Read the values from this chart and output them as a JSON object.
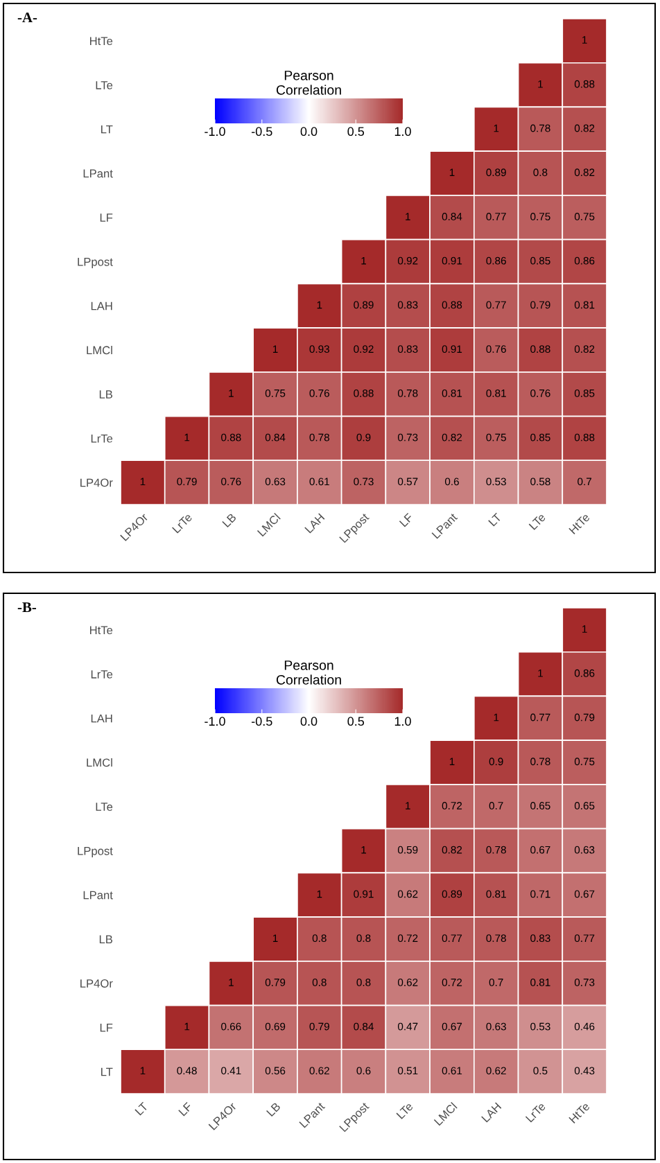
{
  "chart_data": [
    {
      "type": "heatmap",
      "annotations": [
        "-A-"
      ],
      "clabel": "Pearson Correlation",
      "clim": [
        -1,
        1
      ],
      "cticks": [
        {
          "value": -1,
          "label": "-1.0"
        },
        {
          "value": -0.5,
          "label": "-0.5"
        },
        {
          "value": 0,
          "label": "0.0"
        },
        {
          "value": 0.5,
          "label": "0.5"
        },
        {
          "value": 1,
          "label": "1.0"
        }
      ],
      "colors": [
        "#0000ff",
        "#ffffff",
        "#a52a2a"
      ],
      "data_labels": true,
      "grid": false,
      "categories": [
        "LP4Or",
        "LrTe",
        "LB",
        "LMCl",
        "LAH",
        "LPpost",
        "LF",
        "LPant",
        "LT",
        "LTe",
        "HtTe"
      ],
      "y_categories": [
        "HtTe",
        "LTe",
        "LT",
        "LPant",
        "LF",
        "LPpost",
        "LAH",
        "LMCl",
        "LB",
        "LrTe",
        "LP4Or"
      ],
      "cells": [
        [
          null,
          null,
          null,
          null,
          null,
          null,
          null,
          null,
          null,
          null,
          1
        ],
        [
          null,
          null,
          null,
          null,
          null,
          null,
          null,
          null,
          null,
          1,
          0.88
        ],
        [
          null,
          null,
          null,
          null,
          null,
          null,
          null,
          null,
          1,
          0.78,
          0.82
        ],
        [
          null,
          null,
          null,
          null,
          null,
          null,
          null,
          1,
          0.89,
          0.8,
          0.82
        ],
        [
          null,
          null,
          null,
          null,
          null,
          null,
          1,
          0.84,
          0.77,
          0.75,
          0.75
        ],
        [
          null,
          null,
          null,
          null,
          null,
          1,
          0.92,
          0.91,
          0.86,
          0.85,
          0.86
        ],
        [
          null,
          null,
          null,
          null,
          1,
          0.89,
          0.83,
          0.88,
          0.77,
          0.79,
          0.81
        ],
        [
          null,
          null,
          null,
          1,
          0.93,
          0.92,
          0.83,
          0.91,
          0.76,
          0.88,
          0.82
        ],
        [
          null,
          null,
          1,
          0.75,
          0.76,
          0.88,
          0.78,
          0.81,
          0.81,
          0.76,
          0.85
        ],
        [
          null,
          1,
          0.88,
          0.84,
          0.78,
          0.9,
          0.73,
          0.82,
          0.75,
          0.85,
          0.88
        ],
        [
          1,
          0.79,
          0.76,
          0.63,
          0.61,
          0.73,
          0.57,
          0.6,
          0.53,
          0.58,
          0.7
        ]
      ]
    },
    {
      "type": "heatmap",
      "annotations": [
        "-B-"
      ],
      "clabel": "Pearson Correlation",
      "clim": [
        -1,
        1
      ],
      "cticks": [
        {
          "value": -1,
          "label": "-1.0"
        },
        {
          "value": -0.5,
          "label": "-0.5"
        },
        {
          "value": 0,
          "label": "0.0"
        },
        {
          "value": 0.5,
          "label": "0.5"
        },
        {
          "value": 1,
          "label": "1.0"
        }
      ],
      "colors": [
        "#0000ff",
        "#ffffff",
        "#a52a2a"
      ],
      "data_labels": true,
      "grid": false,
      "categories": [
        "LT",
        "LF",
        "LP4Or",
        "LB",
        "LPant",
        "LPpost",
        "LTe",
        "LMCl",
        "LAH",
        "LrTe",
        "HtTe"
      ],
      "y_categories": [
        "HtTe",
        "LrTe",
        "LAH",
        "LMCl",
        "LTe",
        "LPpost",
        "LPant",
        "LB",
        "LP4Or",
        "LF",
        "LT"
      ],
      "cells": [
        [
          null,
          null,
          null,
          null,
          null,
          null,
          null,
          null,
          null,
          null,
          1
        ],
        [
          null,
          null,
          null,
          null,
          null,
          null,
          null,
          null,
          null,
          1,
          0.86
        ],
        [
          null,
          null,
          null,
          null,
          null,
          null,
          null,
          null,
          1,
          0.77,
          0.79
        ],
        [
          null,
          null,
          null,
          null,
          null,
          null,
          null,
          1,
          0.9,
          0.78,
          0.75
        ],
        [
          null,
          null,
          null,
          null,
          null,
          null,
          1,
          0.72,
          0.7,
          0.65,
          0.65
        ],
        [
          null,
          null,
          null,
          null,
          null,
          1,
          0.59,
          0.82,
          0.78,
          0.67,
          0.63
        ],
        [
          null,
          null,
          null,
          null,
          1,
          0.91,
          0.62,
          0.89,
          0.81,
          0.71,
          0.67
        ],
        [
          null,
          null,
          null,
          1,
          0.8,
          0.8,
          0.72,
          0.77,
          0.78,
          0.83,
          0.77
        ],
        [
          null,
          null,
          1,
          0.79,
          0.8,
          0.8,
          0.62,
          0.72,
          0.7,
          0.81,
          0.73
        ],
        [
          null,
          1,
          0.66,
          0.69,
          0.79,
          0.84,
          0.47,
          0.67,
          0.63,
          0.53,
          0.46
        ],
        [
          1,
          0.48,
          0.41,
          0.56,
          0.62,
          0.6,
          0.51,
          0.61,
          0.62,
          0.5,
          0.43
        ]
      ]
    }
  ]
}
